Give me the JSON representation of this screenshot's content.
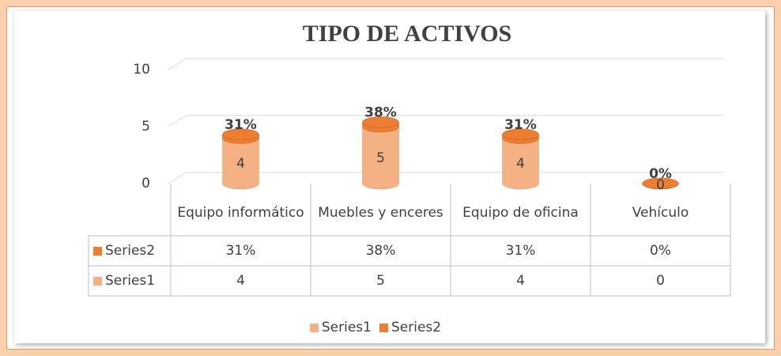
{
  "chart_data": {
    "type": "bar",
    "title": "TIPO DE ACTIVOS",
    "categories": [
      "Equipo informático",
      "Muebles y enceres",
      "Equipo de oficina",
      "Vehículo"
    ],
    "series": [
      {
        "name": "Series1",
        "color": "#f4b183",
        "values": [
          4,
          5,
          4,
          0
        ]
      },
      {
        "name": "Series2",
        "color": "#ed7d31",
        "values": [
          0.31,
          0.38,
          0.31,
          0
        ],
        "value_labels": [
          "31%",
          "38%",
          "31%",
          "0%"
        ]
      }
    ],
    "ylim": [
      0,
      10
    ],
    "yticks": [
      0,
      5,
      10
    ],
    "grid": true,
    "legend": "bottom"
  }
}
